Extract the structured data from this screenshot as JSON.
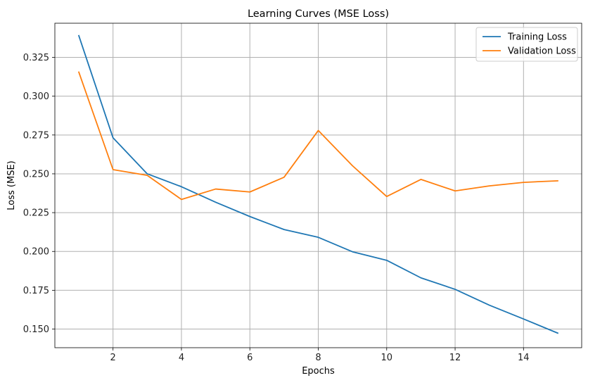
{
  "chart_data": {
    "type": "line",
    "title": "Learning Curves (MSE Loss)",
    "xlabel": "Epochs",
    "ylabel": "Loss (MSE)",
    "xlim": [
      0.3,
      15.7
    ],
    "ylim": [
      0.138,
      0.347
    ],
    "xticks": [
      2,
      4,
      6,
      8,
      10,
      12,
      14
    ],
    "xtick_labels": [
      "2",
      "4",
      "6",
      "8",
      "10",
      "12",
      "14"
    ],
    "yticks": [
      0.15,
      0.175,
      0.2,
      0.225,
      0.25,
      0.275,
      0.3,
      0.325
    ],
    "ytick_labels": [
      "0.150",
      "0.175",
      "0.200",
      "0.225",
      "0.250",
      "0.275",
      "0.300",
      "0.325"
    ],
    "grid": true,
    "legend_position": "top-right",
    "x": [
      1,
      2,
      3,
      4,
      5,
      6,
      7,
      8,
      9,
      10,
      11,
      12,
      13,
      14,
      15
    ],
    "series": [
      {
        "name": "Training Loss",
        "color": "#1f77b4",
        "values": [
          0.339,
          0.2732,
          0.25,
          0.2417,
          0.2317,
          0.2225,
          0.2141,
          0.2091,
          0.1998,
          0.1943,
          0.183,
          0.1756,
          0.1654,
          0.1565,
          0.1474
        ]
      },
      {
        "name": "Validation Loss",
        "color": "#ff7f0e",
        "values": [
          0.3155,
          0.2527,
          0.249,
          0.2335,
          0.2402,
          0.2383,
          0.2478,
          0.2779,
          0.2552,
          0.2354,
          0.2464,
          0.239,
          0.2422,
          0.2445,
          0.2455
        ]
      }
    ]
  }
}
